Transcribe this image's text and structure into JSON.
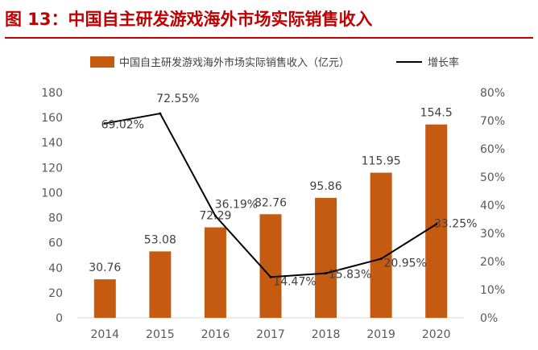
{
  "figure": {
    "title": "图  13：中国自主研发游戏海外市场实际销售收入"
  },
  "chart_data": {
    "type": "bar",
    "categories": [
      "2014",
      "2015",
      "2016",
      "2017",
      "2018",
      "2019",
      "2020"
    ],
    "series": [
      {
        "name": "中国自主研发游戏海外市场实际销售收入（亿元）",
        "type": "bar",
        "axis": "left",
        "color": "#c55a11",
        "values": [
          30.76,
          53.08,
          72.29,
          82.76,
          95.86,
          115.95,
          154.5
        ],
        "labels": [
          "30.76",
          "53.08",
          "72.29",
          "82.76",
          "95.86",
          "115.95",
          "154.5"
        ]
      },
      {
        "name": "增长率",
        "type": "line",
        "axis": "right",
        "color": "#000000",
        "values": [
          69.02,
          72.55,
          36.19,
          14.47,
          15.83,
          20.95,
          33.25
        ],
        "labels": [
          "69.02%",
          "72.55%",
          "36.19%",
          "14.47%",
          "15.83%",
          "20.95%",
          "33.25%"
        ]
      }
    ],
    "y_left": {
      "min": 0,
      "max": 180,
      "ticks": [
        "0",
        "20",
        "40",
        "60",
        "80",
        "100",
        "120",
        "140",
        "160",
        "180"
      ]
    },
    "y_right": {
      "min": 0,
      "max": 80,
      "ticks": [
        "0%",
        "10%",
        "20%",
        "30%",
        "40%",
        "50%",
        "60%",
        "70%",
        "80%"
      ]
    },
    "grid": false,
    "legend": "top"
  }
}
